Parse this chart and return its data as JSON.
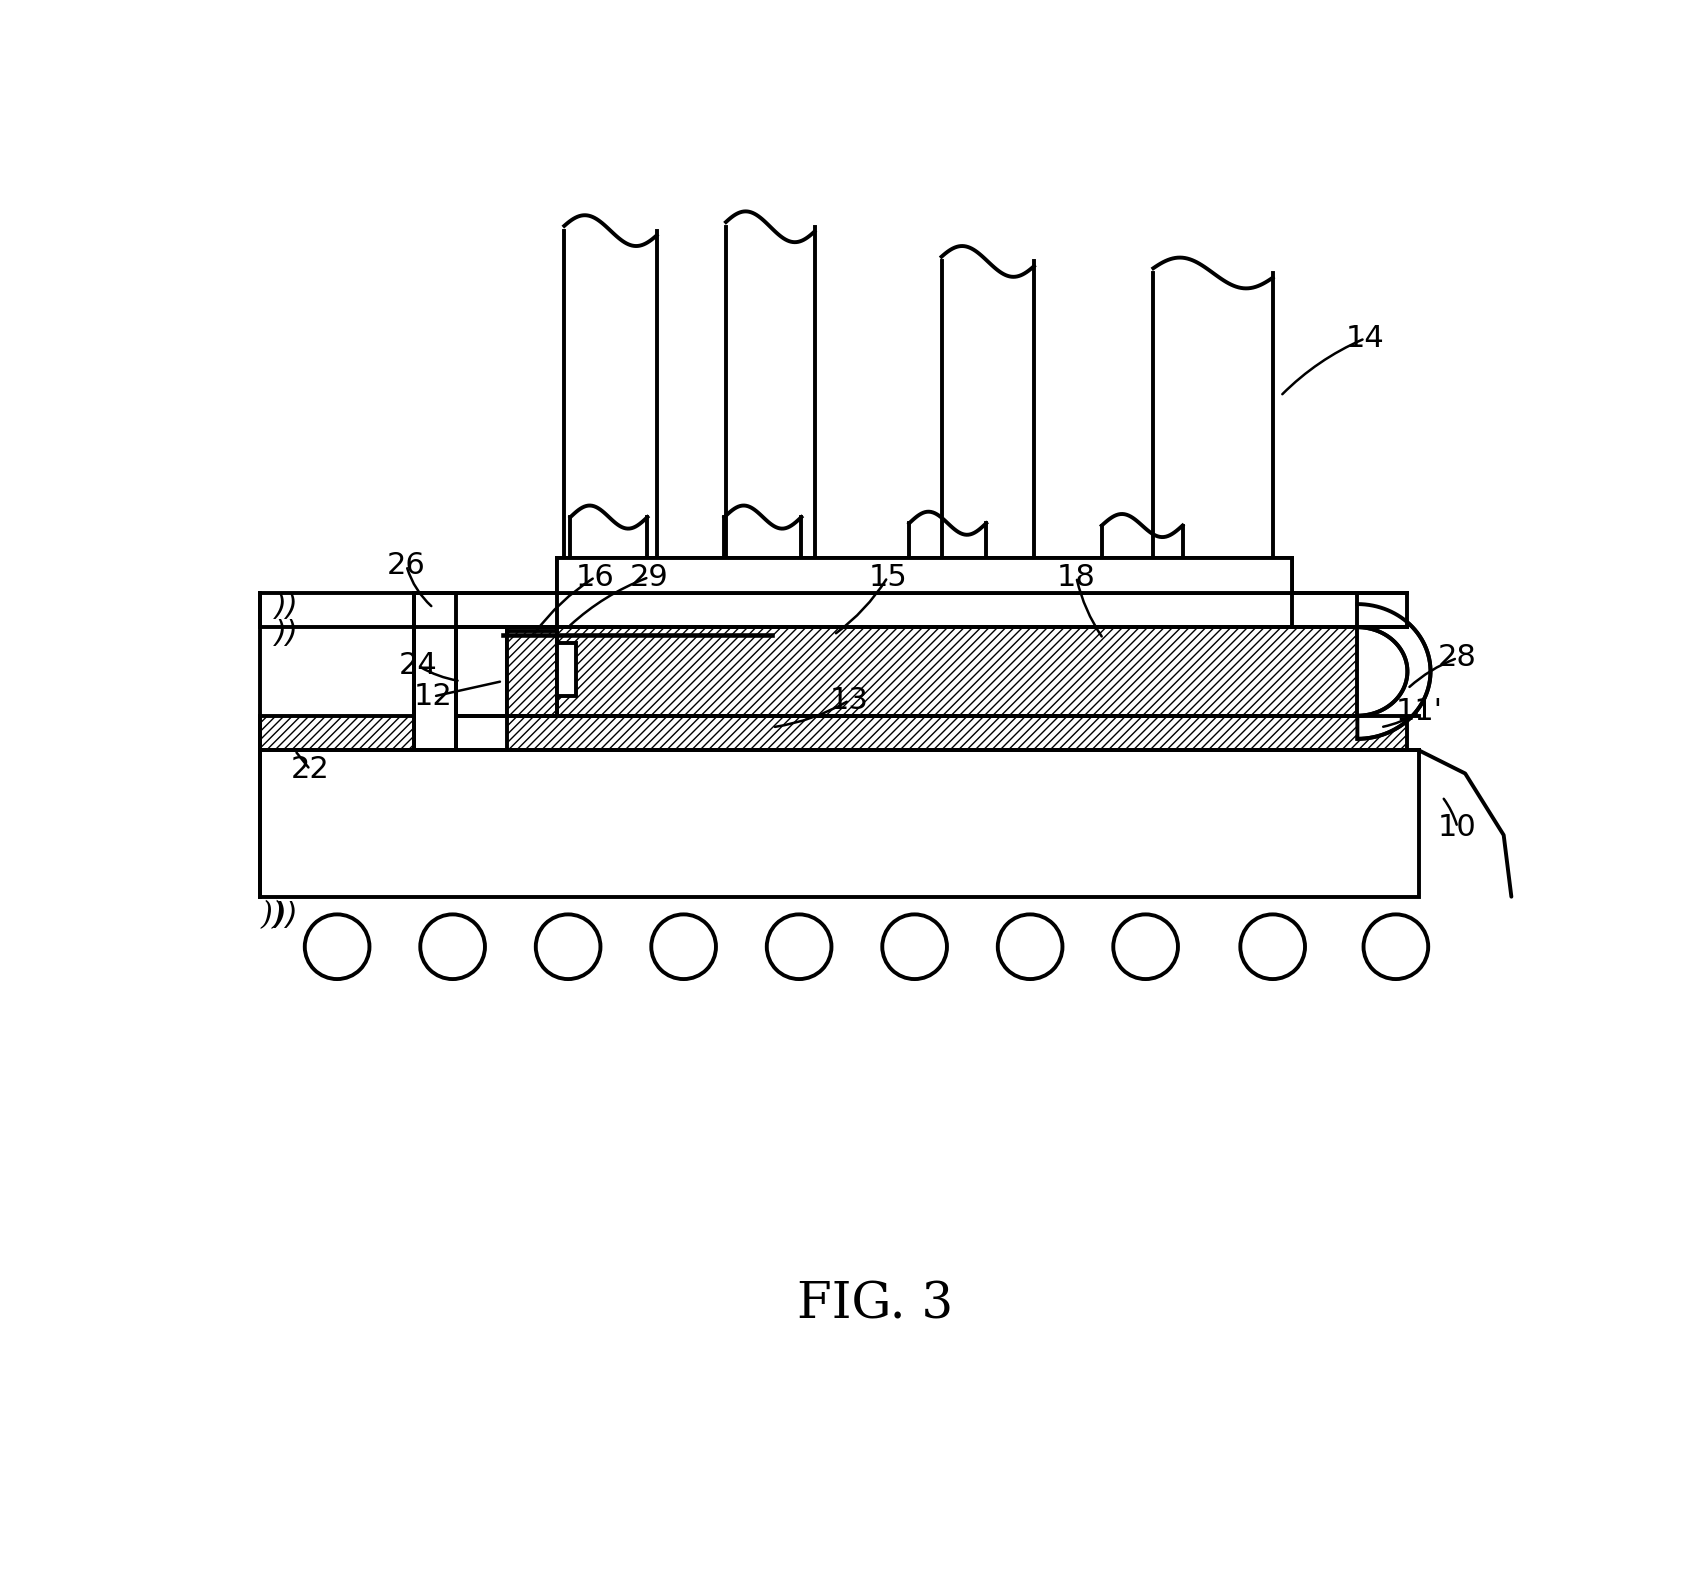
{
  "title": "FIG. 3",
  "title_fontsize": 36,
  "bg_color": "#ffffff",
  "line_color": "#000000",
  "lw": 2.8
}
